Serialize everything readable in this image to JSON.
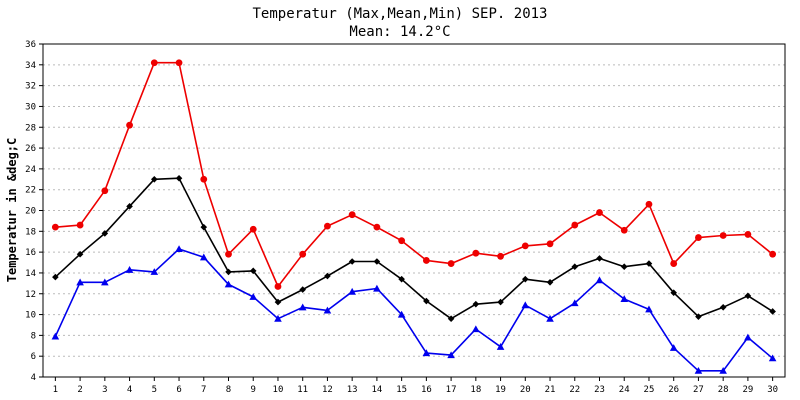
{
  "chart_data": {
    "type": "line",
    "title": "Temperatur (Max,Mean,Min) SEP. 2013",
    "subtitle": "Mean: 14.2°C",
    "xlabel": "",
    "ylabel": "Temperatur in &deg;C",
    "ylim": [
      4,
      36
    ],
    "y_ticks": [
      4,
      6,
      8,
      10,
      12,
      14,
      16,
      18,
      20,
      22,
      24,
      26,
      28,
      30,
      32,
      34,
      36
    ],
    "grid": true,
    "categories": [
      1,
      2,
      3,
      4,
      5,
      6,
      7,
      8,
      9,
      10,
      11,
      12,
      13,
      14,
      15,
      16,
      17,
      18,
      19,
      20,
      21,
      22,
      23,
      24,
      25,
      26,
      27,
      28,
      29,
      30
    ],
    "series": [
      {
        "key": "max",
        "color": "#ee0000",
        "marker": "circle",
        "values": [
          18.4,
          18.6,
          21.9,
          28.2,
          34.2,
          34.2,
          23.0,
          15.8,
          18.2,
          12.7,
          15.8,
          18.5,
          19.6,
          18.4,
          17.1,
          15.2,
          14.9,
          15.9,
          15.6,
          16.6,
          16.8,
          18.6,
          19.8,
          18.1,
          20.6,
          14.9,
          17.4,
          17.6,
          17.7,
          15.8
        ]
      },
      {
        "key": "mean",
        "color": "#000000",
        "marker": "diamond",
        "values": [
          13.6,
          15.8,
          17.8,
          20.4,
          23.0,
          23.1,
          18.4,
          14.1,
          14.2,
          11.2,
          12.4,
          13.7,
          15.1,
          15.1,
          13.4,
          11.3,
          9.6,
          11.0,
          11.2,
          13.4,
          13.1,
          14.6,
          15.4,
          14.6,
          14.9,
          12.1,
          9.8,
          10.7,
          11.8,
          10.3
        ]
      },
      {
        "key": "min",
        "color": "#0000ee",
        "marker": "triangle",
        "values": [
          7.9,
          13.1,
          13.1,
          14.3,
          14.1,
          16.3,
          15.5,
          12.9,
          11.7,
          9.6,
          10.7,
          10.4,
          12.2,
          12.5,
          10.0,
          6.3,
          6.1,
          8.6,
          6.9,
          10.9,
          9.6,
          11.1,
          13.3,
          11.5,
          10.5,
          6.8,
          4.6,
          4.6,
          7.8,
          5.8
        ]
      }
    ]
  }
}
